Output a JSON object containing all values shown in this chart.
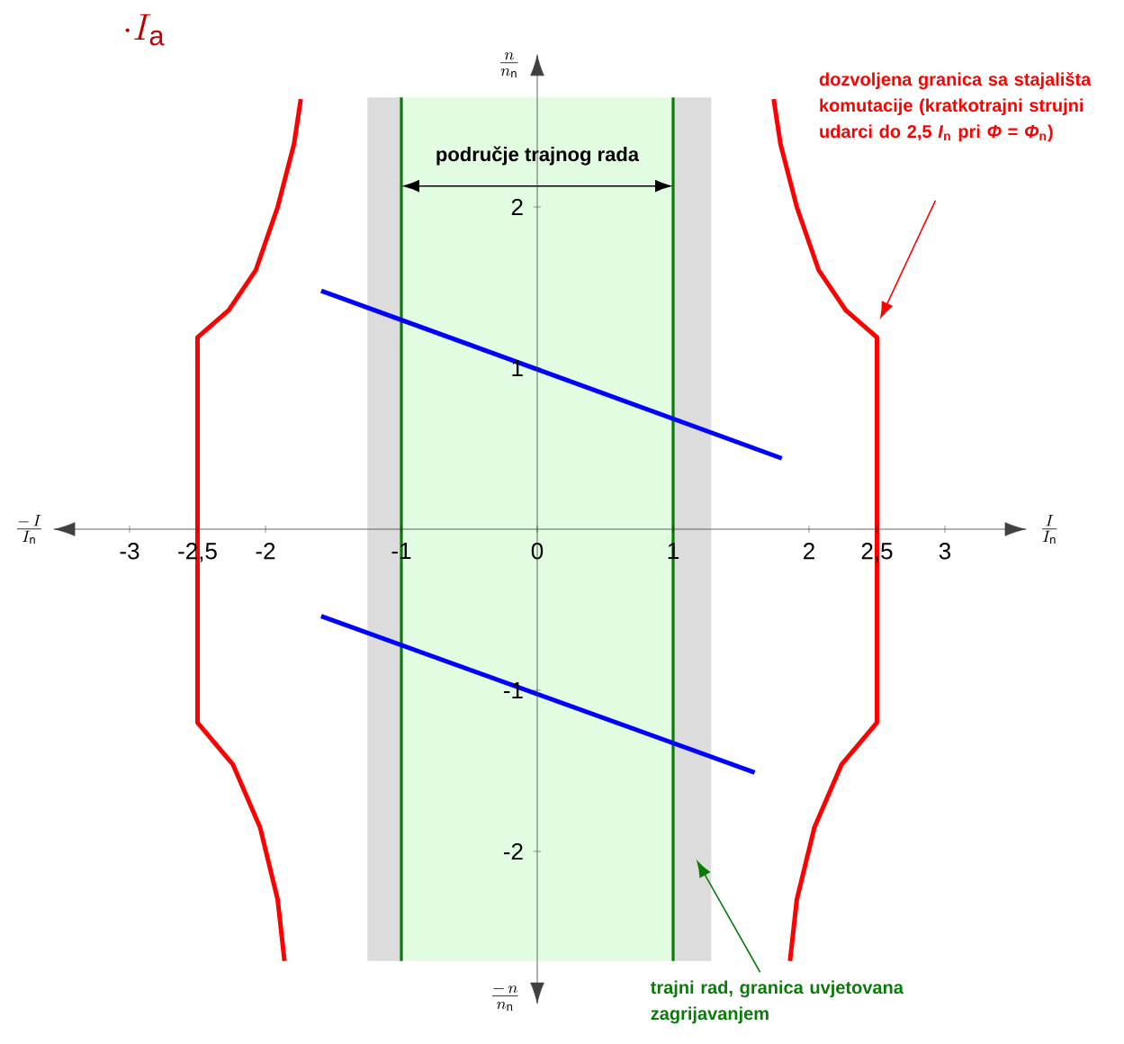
{
  "chart_data": {
    "type": "line",
    "title": "\\cdot I_{\\mathrm{a}}",
    "xlabel": "\\frac{I}{I_{\\mathrm{n}}}",
    "ylabel": "\\frac{n}{n_{\\mathrm{n}}}",
    "xlim": [
      -3.56,
      3.6
    ],
    "ylim": [
      -2.68,
      2.68
    ],
    "xticks": [
      -3,
      {
        "value": -2.5,
        "label": "-2,5"
      },
      -2,
      -1,
      0,
      1,
      2,
      {
        "value": 2.5,
        "label": "2,5"
      },
      3
    ],
    "yticks": [
      -2,
      -1,
      1,
      2
    ],
    "bands": [
      {
        "axis": "x",
        "from": -1.25,
        "to": -1,
        "color": "#dcdcdc"
      },
      {
        "axis": "x",
        "from": -1,
        "to": 1,
        "color": "#e2fce2"
      },
      {
        "axis": "x",
        "from": 1,
        "to": 1.28,
        "color": "#dcdcdc"
      }
    ],
    "ref_lines": [
      {
        "axis": "x",
        "value": -1,
        "color": "#0a7a0a"
      },
      {
        "axis": "x",
        "value": 1,
        "color": "#0a7a0a"
      }
    ],
    "series": [
      {
        "color": "#0000ff",
        "x": [
          -1.59,
          1.8
        ],
        "values": [
          1.48,
          0.44
        ]
      },
      {
        "color": "#0000ff",
        "x": [
          -1.59,
          1.6
        ],
        "values": [
          -0.54,
          -1.51
        ]
      },
      {
        "color": "#ff0000",
        "x": [
          1.74,
          1.79,
          1.91,
          2.07,
          2.27,
          2.5,
          2.5,
          2.24,
          2.04,
          1.91,
          1.86
        ],
        "values": [
          2.67,
          2.39,
          2.0,
          1.61,
          1.36,
          1.19,
          -1.2,
          -1.46,
          -1.85,
          -2.3,
          -2.68
        ]
      },
      {
        "color": "#ff0000",
        "x": [
          -1.74,
          -1.79,
          -1.91,
          -2.07,
          -2.27,
          -2.5,
          -2.5,
          -2.24,
          -2.04,
          -1.91,
          -1.86
        ],
        "values": [
          2.67,
          2.39,
          2.0,
          1.61,
          1.36,
          1.19,
          -1.2,
          -1.46,
          -1.85,
          -2.3,
          -2.68
        ]
      }
    ],
    "annotations": [
      "\\frac{-\\,I}{I_{\\mathrm{n}}}",
      "\\frac{-\\,n}{n_{\\mathrm{n}}}",
      "područje trajnog rada",
      "dozvoljena granica sa stajališta komutacije (kratkotrajni strujni udarci do 2,5 *I*$_{n}$ pri *Φ* = *Φ*$_{n}$)",
      "trajni rad, granica uvjetovana zagrijavanjem"
    ]
  }
}
